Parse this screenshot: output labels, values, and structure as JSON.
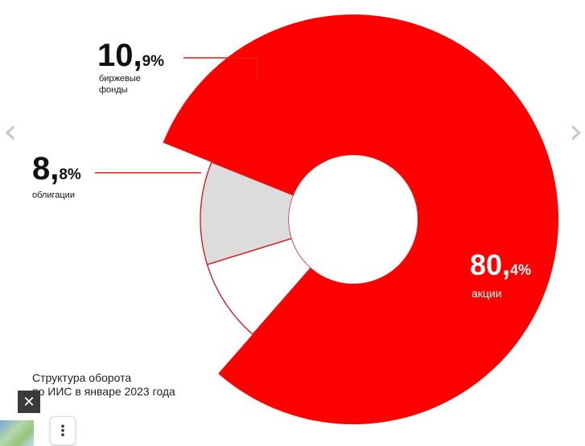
{
  "chart_data": {
    "type": "pie",
    "title": "Структура оборота\nпо ИИС в январе 2023 года",
    "slices": [
      {
        "label": "акции",
        "value": 80.4,
        "display_int": "80,",
        "display_dec": "4%",
        "color": "#ff0000"
      },
      {
        "label": "облигации",
        "value": 8.8,
        "display_int": "8,",
        "display_dec": "8%",
        "color": "#ffffff"
      },
      {
        "label": "биржевые фонды",
        "value": 10.9,
        "display_int": "10,",
        "display_dec": "9%",
        "color": "#dcdcdc"
      }
    ]
  },
  "caption": {
    "line1": "Структура оборота",
    "line2": "по ИИС в январе 2023 года"
  },
  "nav": {
    "prev_icon": "chevron-left-icon",
    "next_icon": "chevron-right-icon"
  },
  "controls": {
    "close_icon": "close-icon",
    "more_icon": "more-vertical-icon"
  }
}
